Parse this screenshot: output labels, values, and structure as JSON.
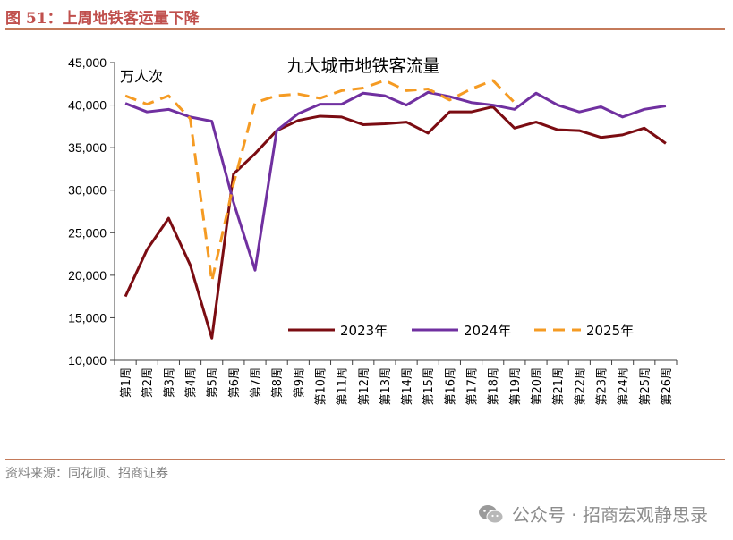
{
  "header": {
    "figure_title": "图 51：上周地铁客运量下降"
  },
  "footer": {
    "source": "资料来源：同花顺、招商证券",
    "watermark": "公众号 · 招商宏观静思录",
    "watermark_icon": "wechat-icon"
  },
  "colors": {
    "accent": "#c0504d",
    "rule": "#c47a5a",
    "s2023": "#7b0c12",
    "s2024": "#7030a0",
    "s2025": "#f59b23"
  },
  "chart_data": {
    "type": "line",
    "title": "九大城市地铁客流量",
    "ylabel": "万人次",
    "xlabel": "",
    "ylim": [
      10000,
      45000
    ],
    "yticks": [
      10000,
      15000,
      20000,
      25000,
      30000,
      35000,
      40000,
      45000
    ],
    "ytick_labels": [
      "10,000",
      "15,000",
      "20,000",
      "25,000",
      "30,000",
      "35,000",
      "40,000",
      "45,000"
    ],
    "categories": [
      "第1周",
      "第2周",
      "第3周",
      "第4周",
      "第5周",
      "第6周",
      "第7周",
      "第8周",
      "第9周",
      "第10周",
      "第11周",
      "第12周",
      "第13周",
      "第14周",
      "第15周",
      "第16周",
      "第17周",
      "第18周",
      "第19周",
      "第20周",
      "第21周",
      "第22周",
      "第23周",
      "第24周",
      "第25周",
      "第26周"
    ],
    "legend_position": "bottom-right",
    "series": [
      {
        "name": "2023年",
        "style": "solid",
        "values": [
          17500,
          23000,
          26700,
          21200,
          12600,
          31900,
          34300,
          37000,
          38200,
          38700,
          38600,
          37700,
          37800,
          38000,
          36700,
          39200,
          39200,
          39800,
          37300,
          38000,
          37100,
          37000,
          36200,
          36500,
          37300,
          35500
        ]
      },
      {
        "name": "2024年",
        "style": "solid",
        "values": [
          40200,
          39200,
          39500,
          38600,
          38100,
          28600,
          20600,
          37000,
          39000,
          40100,
          40100,
          41400,
          41100,
          40000,
          41500,
          41000,
          40300,
          40000,
          39500,
          41400,
          40000,
          39200,
          39800,
          38600,
          39500,
          39900
        ]
      },
      {
        "name": "2025年",
        "style": "dashed",
        "values": [
          41100,
          40100,
          41100,
          38400,
          19300,
          30700,
          40300,
          41100,
          41300,
          40800,
          41700,
          42000,
          42900,
          41700,
          41900,
          40600,
          41900,
          42900,
          40300,
          null,
          null,
          null,
          null,
          null,
          null,
          null
        ]
      }
    ]
  }
}
